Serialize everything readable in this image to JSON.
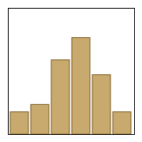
{
  "chart_data": {
    "type": "bar",
    "categories": [
      null,
      null,
      null,
      null,
      null,
      null
    ],
    "values": [
      3,
      4,
      10,
      13,
      8,
      3
    ],
    "color": "#C8A96E",
    "ylim": [
      0,
      17
    ],
    "tick_labels": false
  }
}
